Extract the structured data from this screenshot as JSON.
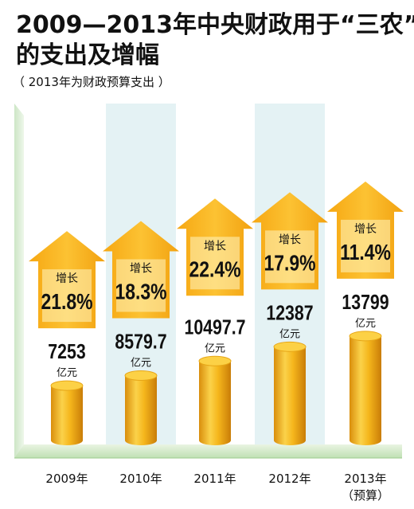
{
  "title_line1": "2009—2013年中央财政用于“三农”",
  "title_line2": "的支出及增幅",
  "subtitle": "（ 2013年为财政预算支出 ）",
  "colors": {
    "arrow": "#f7b21c",
    "arrow_box": "#fff3b0",
    "cylinder": "#f3b515",
    "column_bg": "#e4f2f4",
    "floor": "#cfe8c5"
  },
  "chart_data": {
    "type": "bar",
    "categories": [
      "2009年",
      "2010年",
      "2011年",
      "2012年",
      "2013年"
    ],
    "category_notes": [
      "",
      "",
      "",
      "",
      "（预算）"
    ],
    "values": [
      7253,
      8579.7,
      10497.7,
      12387,
      13799
    ],
    "value_labels": [
      "7253",
      "8579.7",
      "10497.7",
      "12387",
      "13799"
    ],
    "unit": "亿元",
    "growth_label": "增长",
    "growth": [
      "21.8%",
      "18.3%",
      "22.4%",
      "17.9%",
      "11.4%"
    ]
  }
}
